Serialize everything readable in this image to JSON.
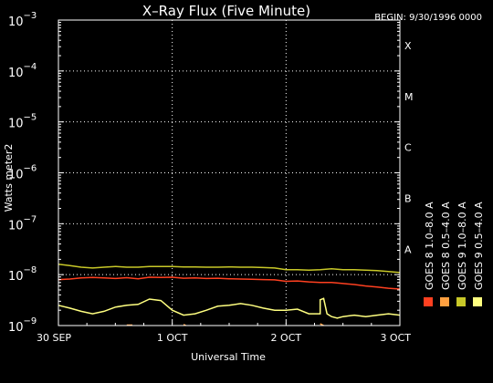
{
  "chart_data": {
    "type": "line",
    "title": "X–Ray Flux (Five Minute)",
    "begin_label": "BEGIN: 9/30/1996 0000",
    "xlabel": "Universal Time",
    "ylabel": "Watts meter2",
    "x_unit": "days since 30 SEP 1996 00:00",
    "xlim": [
      0,
      3
    ],
    "x_ticks": [
      {
        "value": 0,
        "label": "30 SEP"
      },
      {
        "value": 1,
        "label": "1 OCT"
      },
      {
        "value": 2,
        "label": "2 OCT"
      },
      {
        "value": 3,
        "label": "3 OCT"
      }
    ],
    "y_scale": "log",
    "ylim": [
      1e-09,
      0.001
    ],
    "y_ticks": [
      {
        "value": 0.001,
        "base": "10",
        "exp": "−3"
      },
      {
        "value": 0.0001,
        "base": "10",
        "exp": "−4"
      },
      {
        "value": 1e-05,
        "base": "10",
        "exp": "−5"
      },
      {
        "value": 1e-06,
        "base": "10",
        "exp": "−6"
      },
      {
        "value": 1e-07,
        "base": "10",
        "exp": "−7"
      },
      {
        "value": 1e-08,
        "base": "10",
        "exp": "−8"
      },
      {
        "value": 1e-09,
        "base": "10",
        "exp": "−9"
      }
    ],
    "class_labels": [
      {
        "label": "X",
        "value": 0.000316
      },
      {
        "label": "M",
        "value": 3.16e-05
      },
      {
        "label": "C",
        "value": 3.16e-06
      },
      {
        "label": "B",
        "value": 3.16e-07
      },
      {
        "label": "A",
        "value": 3.16e-08
      }
    ],
    "grid": true,
    "legend": [
      {
        "label": "GOES 8  1.0–8.0 A",
        "color": "#ff4020"
      },
      {
        "label": "GOES 8  0.5–4.0 A",
        "color": "#ffa040"
      },
      {
        "label": "GOES 9  1.0–8.0 A",
        "color": "#c8c828"
      },
      {
        "label": "GOES 9  0.5–4.0 A",
        "color": "#ffff80"
      }
    ],
    "series": [
      {
        "name": "GOES 8  1.0–8.0 A",
        "color": "#ff4020",
        "x": [
          0,
          0.1,
          0.2,
          0.3,
          0.4,
          0.5,
          0.6,
          0.7,
          0.8,
          0.9,
          1.0,
          1.1,
          1.2,
          1.3,
          1.4,
          1.5,
          1.6,
          1.7,
          1.8,
          1.9,
          2.0,
          2.1,
          2.2,
          2.3,
          2.4,
          2.5,
          2.6,
          2.7,
          2.8,
          2.9,
          3.0
        ],
        "y": [
          8e-09,
          8.2e-09,
          8.6e-09,
          8.8e-09,
          8.6e-09,
          8.4e-09,
          8.7e-09,
          8.3e-09,
          8.9e-09,
          8.8e-09,
          8.9e-09,
          8.5e-09,
          8.6e-09,
          8.4e-09,
          8.5e-09,
          8.3e-09,
          8.2e-09,
          8.1e-09,
          8e-09,
          7.9e-09,
          7.4e-09,
          7.5e-09,
          7.2e-09,
          7e-09,
          7e-09,
          6.7e-09,
          6.4e-09,
          6e-09,
          5.7e-09,
          5.4e-09,
          5.2e-09
        ]
      },
      {
        "name": "GOES 9  1.0–8.0 A",
        "color": "#c8c828",
        "x": [
          0,
          0.1,
          0.2,
          0.3,
          0.4,
          0.5,
          0.6,
          0.7,
          0.8,
          0.9,
          1.0,
          1.1,
          1.2,
          1.3,
          1.4,
          1.5,
          1.6,
          1.7,
          1.8,
          1.9,
          2.0,
          2.1,
          2.2,
          2.3,
          2.4,
          2.5,
          2.6,
          2.7,
          2.8,
          2.9,
          3.0
        ],
        "y": [
          1.6e-08,
          1.5e-08,
          1.4e-08,
          1.35e-08,
          1.4e-08,
          1.45e-08,
          1.4e-08,
          1.4e-08,
          1.45e-08,
          1.45e-08,
          1.45e-08,
          1.42e-08,
          1.42e-08,
          1.4e-08,
          1.4e-08,
          1.42e-08,
          1.4e-08,
          1.4e-08,
          1.38e-08,
          1.35e-08,
          1.25e-08,
          1.25e-08,
          1.22e-08,
          1.25e-08,
          1.3e-08,
          1.25e-08,
          1.25e-08,
          1.22e-08,
          1.2e-08,
          1.15e-08,
          1.1e-08
        ]
      },
      {
        "name": "GOES 9  0.5–4.0 A",
        "color": "#ffff80",
        "x": [
          0,
          0.1,
          0.2,
          0.3,
          0.4,
          0.5,
          0.6,
          0.7,
          0.8,
          0.9,
          1.0,
          1.1,
          1.2,
          1.3,
          1.4,
          1.5,
          1.6,
          1.7,
          1.8,
          1.9,
          2.0,
          2.1,
          2.2,
          2.3,
          2.3,
          2.33,
          2.36,
          2.4,
          2.45,
          2.5,
          2.6,
          2.7,
          2.8,
          2.9,
          3.0
        ],
        "y": [
          2.5e-09,
          2.2e-09,
          1.9e-09,
          1.7e-09,
          1.9e-09,
          2.3e-09,
          2.5e-09,
          2.6e-09,
          3.3e-09,
          3.1e-09,
          2e-09,
          1.6e-09,
          1.7e-09,
          2e-09,
          2.4e-09,
          2.5e-09,
          2.7e-09,
          2.5e-09,
          2.2e-09,
          2e-09,
          2e-09,
          2.1e-09,
          1.7e-09,
          1.7e-09,
          3.2e-09,
          3.4e-09,
          1.7e-09,
          1.5e-09,
          1.4e-09,
          1.5e-09,
          1.6e-09,
          1.5e-09,
          1.6e-09,
          1.7e-09,
          1.6e-09
        ]
      },
      {
        "name": "GOES 8  0.5–4.0 A",
        "color": "#ffa040",
        "x": [
          0.6,
          0.65,
          1.1,
          1.12,
          2.3,
          2.33
        ],
        "y": [
          1.02e-09,
          1.02e-09,
          1.05e-09,
          1e-09,
          1.08e-09,
          1e-09
        ]
      }
    ]
  }
}
